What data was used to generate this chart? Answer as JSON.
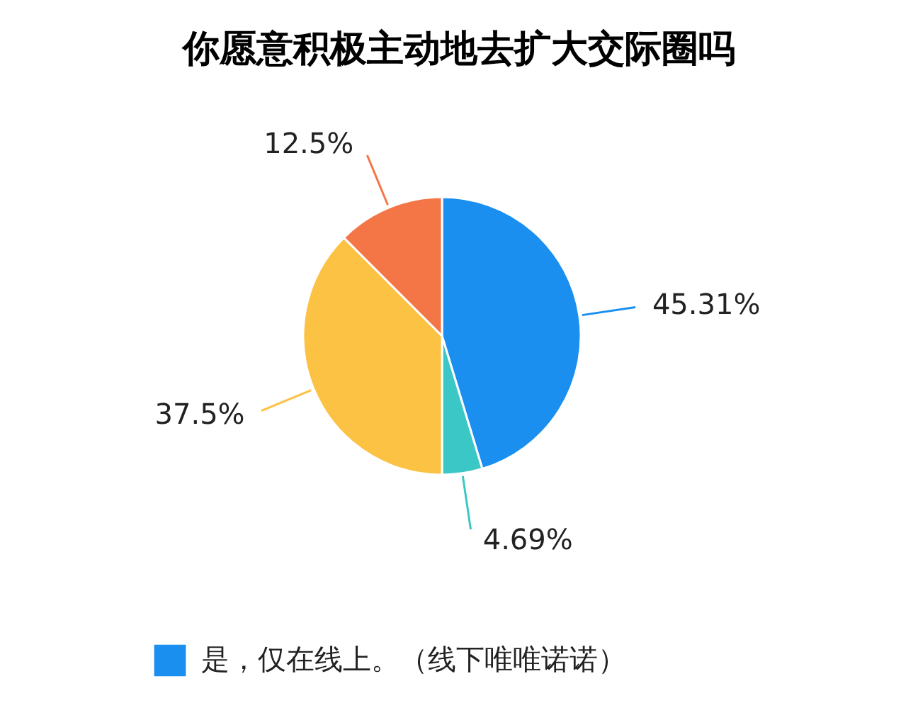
{
  "chart_data": {
    "type": "pie",
    "title": "你愿意积极主动地去扩大交际圈吗",
    "categories": [
      "是，仅在线上。（线下唯唯诺诺）",
      null,
      null,
      null
    ],
    "values": [
      45.31,
      4.69,
      37.5,
      12.5
    ],
    "colors": [
      "#1a8ff0",
      "#3cc7c7",
      "#fbc244",
      "#f47647"
    ],
    "value_labels": [
      "45.31%",
      "4.69%",
      "37.5%",
      "12.5%"
    ],
    "legend": "bottom"
  }
}
